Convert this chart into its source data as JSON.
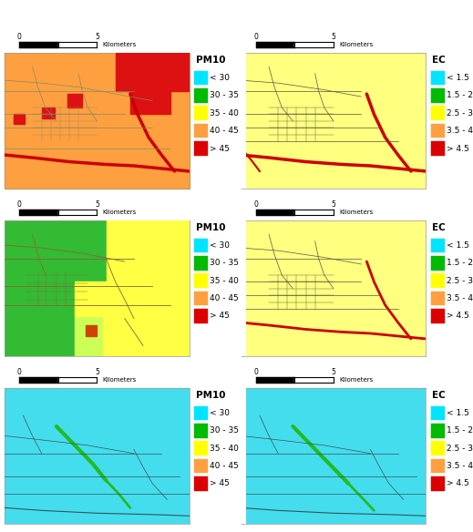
{
  "figure_bg": "#ffffff",
  "panels": [
    {
      "idx": 0,
      "legend_title": "PM10",
      "legend_items": [
        {
          "label": "< 30",
          "color": "#00E5FF"
        },
        {
          "label": "30 - 35",
          "color": "#00BB00"
        },
        {
          "label": "35 - 40",
          "color": "#FFFF00"
        },
        {
          "label": "40 - 45",
          "color": "#FFA040"
        },
        {
          "label": "> 45",
          "color": "#DD0000"
        }
      ]
    },
    {
      "idx": 1,
      "legend_title": "EC",
      "legend_items": [
        {
          "label": "< 1.5",
          "color": "#00E5FF"
        },
        {
          "label": "1.5 - 2.5",
          "color": "#00BB00"
        },
        {
          "label": "2.5 - 3.5",
          "color": "#FFFF00"
        },
        {
          "label": "3.5 - 4.5",
          "color": "#FFA040"
        },
        {
          "label": "> 4.5",
          "color": "#DD0000"
        }
      ]
    },
    {
      "idx": 2,
      "legend_title": "PM10",
      "legend_items": [
        {
          "label": "< 30",
          "color": "#00E5FF"
        },
        {
          "label": "30 - 35",
          "color": "#00BB00"
        },
        {
          "label": "35 - 40",
          "color": "#FFFF00"
        },
        {
          "label": "40 - 45",
          "color": "#FFA040"
        },
        {
          "label": "> 45",
          "color": "#DD0000"
        }
      ]
    },
    {
      "idx": 3,
      "legend_title": "EC",
      "legend_items": [
        {
          "label": "< 1.5",
          "color": "#00E5FF"
        },
        {
          "label": "1.5 - 2.5",
          "color": "#00BB00"
        },
        {
          "label": "2.5 - 3.5",
          "color": "#FFFF00"
        },
        {
          "label": "3.5 - 4.5",
          "color": "#FFA040"
        },
        {
          "label": "> 4.5",
          "color": "#DD0000"
        }
      ]
    },
    {
      "idx": 4,
      "legend_title": "PM10",
      "legend_items": [
        {
          "label": "< 30",
          "color": "#00E5FF"
        },
        {
          "label": "30 - 35",
          "color": "#00BB00"
        },
        {
          "label": "35 - 40",
          "color": "#FFFF00"
        },
        {
          "label": "40 - 45",
          "color": "#FFA040"
        },
        {
          "label": "> 45",
          "color": "#DD0000"
        }
      ]
    },
    {
      "idx": 5,
      "legend_title": "EC",
      "legend_items": [
        {
          "label": "< 1.5",
          "color": "#00E5FF"
        },
        {
          "label": "1.5 - 2.5",
          "color": "#00BB00"
        },
        {
          "label": "2.5 - 3.5",
          "color": "#FFFF00"
        },
        {
          "label": "3.5 - 4.5",
          "color": "#FFA040"
        },
        {
          "label": "> 4.5",
          "color": "#DD0000"
        }
      ]
    }
  ],
  "map_bg_colors": [
    "#FFA040",
    "#FFFF80",
    "#88CC44",
    "#FFFF80",
    "#44DDEE",
    "#44DDEE"
  ],
  "legend_fontsize": 6.5,
  "legend_title_fontsize": 7.5
}
